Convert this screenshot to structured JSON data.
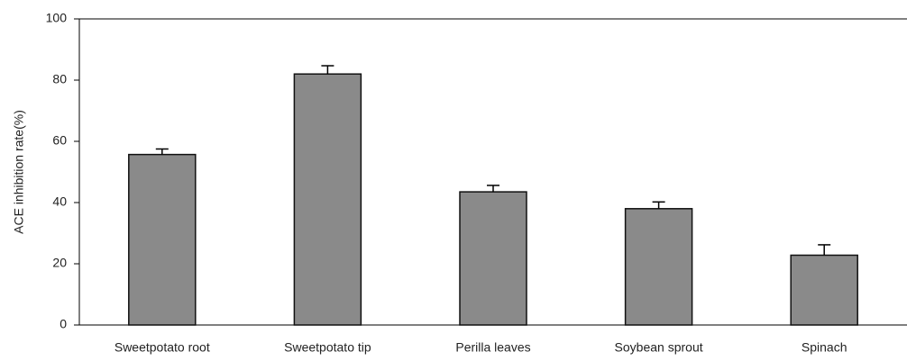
{
  "chart_data": {
    "type": "bar",
    "ylabel": "ACE inhibition rate(%)",
    "categories": [
      "Sweetpotato root",
      "Sweetpotato tip",
      "Perilla leaves",
      "Soybean sprout",
      "Spinach"
    ],
    "values": [
      55.7,
      82,
      43.5,
      38,
      22.8
    ],
    "errors": [
      1.8,
      2.7,
      2.1,
      2.2,
      3.4
    ],
    "color": "#8a8a8a",
    "ylim": [
      0,
      100
    ],
    "yticks": [
      0,
      20,
      40,
      60,
      80,
      100
    ],
    "grid": false
  }
}
